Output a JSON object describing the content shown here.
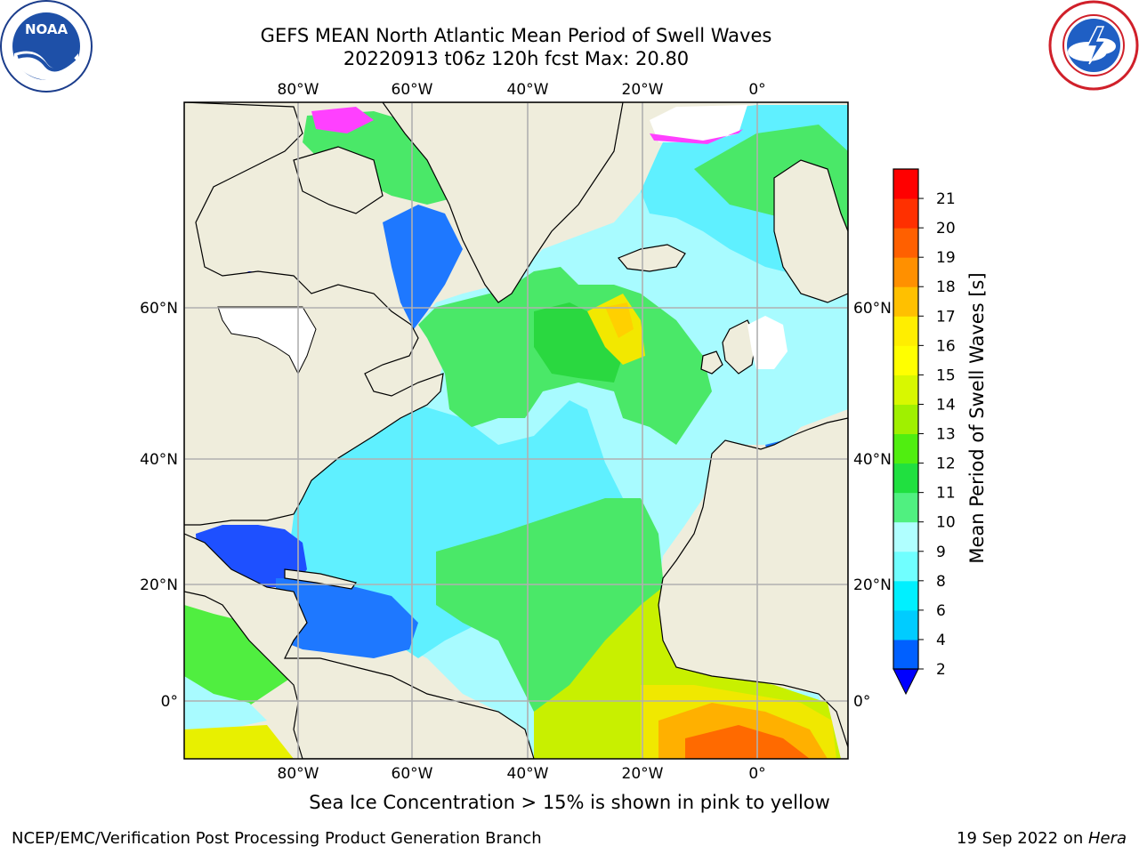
{
  "header": {
    "title_line1": "GEFS MEAN North Atlantic Mean Period of Swell Waves",
    "title_line2": "20220913 t06z 120h fcst   Max: 20.80"
  },
  "logos": {
    "left": {
      "text": "NOAA",
      "icon": "noaa-logo-icon"
    },
    "right": {
      "icon": "nws-logo-icon"
    }
  },
  "map": {
    "type": "heatmap",
    "region": "North Atlantic",
    "variable": "Mean Period of Swell Waves",
    "units": "s",
    "top_lon_ticks": [
      "80°W",
      "60°W",
      "40°W",
      "20°W",
      "0°"
    ],
    "bottom_lon_ticks": [
      "80°W",
      "60°W",
      "40°W",
      "20°W",
      "0°"
    ],
    "left_lat_ticks": [
      "60°N",
      "40°N",
      "20°N",
      "0°"
    ],
    "right_lat_ticks": [
      "60°N",
      "40°N",
      "20°N",
      "0°"
    ],
    "grid": true,
    "colors": {
      "land": "#efeddc",
      "grid": "#b0b0b0",
      "ice_pink": "#ff40ff",
      "ice_yellow": "#ffdd80"
    }
  },
  "chart_data": {
    "type": "heatmap",
    "colorbar": {
      "label": "Mean Period of Swell Waves [s]",
      "ticks": [
        "2",
        "4",
        "6",
        "8",
        "9",
        "10",
        "11",
        "12",
        "13",
        "14",
        "15",
        "16",
        "17",
        "18",
        "19",
        "20",
        "21"
      ],
      "colors": [
        "#0060ff",
        "#00ccff",
        "#00f0ff",
        "#70ffff",
        "#b0ffff",
        "#50f080",
        "#20e040",
        "#50ee10",
        "#a0f000",
        "#d8f800",
        "#ffff00",
        "#ffee00",
        "#ffc000",
        "#ff9000",
        "#ff6000",
        "#ff3000",
        "#ff0000"
      ],
      "under_color": "#0000ff"
    },
    "max_value": 20.8
  },
  "caption": "Sea Ice Concentration > 15% is shown in pink to yellow",
  "footer": {
    "left": "NCEP/EMC/Verification Post Processing Product Generation Branch",
    "right_prefix": "19 Sep 2022 on ",
    "right_host": "Hera"
  }
}
